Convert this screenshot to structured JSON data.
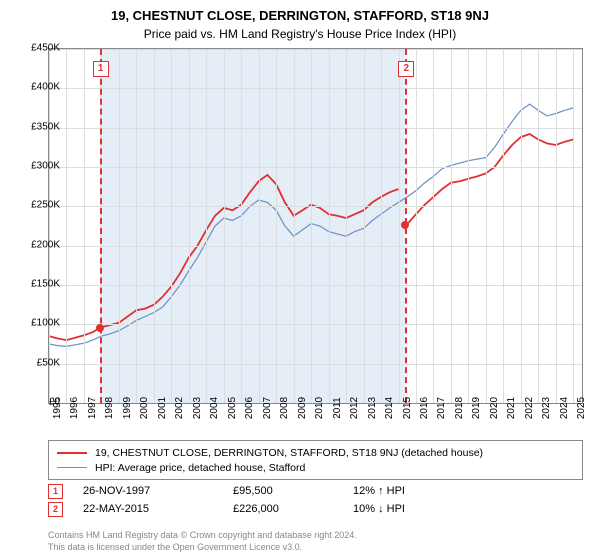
{
  "title_main": "19, CHESTNUT CLOSE, DERRINGTON, STAFFORD, ST18 9NJ",
  "title_sub": "Price paid vs. HM Land Registry's House Price Index (HPI)",
  "chart": {
    "type": "line",
    "ylim": [
      0,
      450000
    ],
    "ytick_step": 50000,
    "yticks": [
      "£0",
      "£50K",
      "£100K",
      "£150K",
      "£200K",
      "£250K",
      "£300K",
      "£350K",
      "£400K",
      "£450K"
    ],
    "xticks": [
      "1995",
      "1996",
      "1997",
      "1998",
      "1999",
      "2000",
      "2001",
      "2002",
      "2003",
      "2004",
      "2005",
      "2006",
      "2007",
      "2008",
      "2009",
      "2010",
      "2011",
      "2012",
      "2013",
      "2014",
      "2015",
      "2016",
      "2017",
      "2018",
      "2019",
      "2020",
      "2021",
      "2022",
      "2023",
      "2024",
      "2025"
    ],
    "xrange": [
      1995,
      2025.5
    ],
    "series": {
      "price": {
        "color": "#e03030",
        "width": 1.8,
        "data": [
          [
            1995,
            85000
          ],
          [
            1995.5,
            82000
          ],
          [
            1996,
            80000
          ],
          [
            1996.5,
            83000
          ],
          [
            1997,
            86000
          ],
          [
            1997.5,
            90000
          ],
          [
            1997.9,
            95500
          ],
          [
            1998.3,
            98000
          ],
          [
            1999,
            102000
          ],
          [
            1999.5,
            110000
          ],
          [
            2000,
            118000
          ],
          [
            2000.5,
            120000
          ],
          [
            2001,
            125000
          ],
          [
            2001.5,
            135000
          ],
          [
            2002,
            148000
          ],
          [
            2002.5,
            165000
          ],
          [
            2003,
            185000
          ],
          [
            2003.5,
            200000
          ],
          [
            2004,
            220000
          ],
          [
            2004.5,
            238000
          ],
          [
            2005,
            248000
          ],
          [
            2005.5,
            245000
          ],
          [
            2006,
            252000
          ],
          [
            2006.5,
            268000
          ],
          [
            2007,
            282000
          ],
          [
            2007.5,
            290000
          ],
          [
            2008,
            278000
          ],
          [
            2008.5,
            255000
          ],
          [
            2009,
            238000
          ],
          [
            2009.5,
            245000
          ],
          [
            2010,
            252000
          ],
          [
            2010.5,
            248000
          ],
          [
            2011,
            240000
          ],
          [
            2011.5,
            238000
          ],
          [
            2012,
            235000
          ],
          [
            2012.5,
            240000
          ],
          [
            2013,
            245000
          ],
          [
            2013.5,
            255000
          ],
          [
            2014,
            262000
          ],
          [
            2014.5,
            268000
          ],
          [
            2015,
            272000
          ],
          [
            2015.39,
            226000
          ],
          [
            2015.6,
            230000
          ],
          [
            2016,
            240000
          ],
          [
            2016.5,
            252000
          ],
          [
            2017,
            262000
          ],
          [
            2017.5,
            272000
          ],
          [
            2018,
            280000
          ],
          [
            2018.5,
            282000
          ],
          [
            2019,
            285000
          ],
          [
            2019.5,
            288000
          ],
          [
            2020,
            292000
          ],
          [
            2020.5,
            300000
          ],
          [
            2021,
            315000
          ],
          [
            2021.5,
            328000
          ],
          [
            2022,
            338000
          ],
          [
            2022.5,
            342000
          ],
          [
            2023,
            335000
          ],
          [
            2023.5,
            330000
          ],
          [
            2024,
            328000
          ],
          [
            2024.5,
            332000
          ],
          [
            2025,
            335000
          ]
        ]
      },
      "hpi": {
        "color": "#6a8fc5",
        "width": 1.2,
        "data": [
          [
            1995,
            75000
          ],
          [
            1995.5,
            73000
          ],
          [
            1996,
            72000
          ],
          [
            1996.5,
            74000
          ],
          [
            1997,
            76000
          ],
          [
            1997.5,
            80000
          ],
          [
            1998,
            85000
          ],
          [
            1998.5,
            88000
          ],
          [
            1999,
            92000
          ],
          [
            1999.5,
            98000
          ],
          [
            2000,
            105000
          ],
          [
            2000.5,
            110000
          ],
          [
            2001,
            115000
          ],
          [
            2001.5,
            122000
          ],
          [
            2002,
            135000
          ],
          [
            2002.5,
            150000
          ],
          [
            2003,
            168000
          ],
          [
            2003.5,
            185000
          ],
          [
            2004,
            205000
          ],
          [
            2004.5,
            225000
          ],
          [
            2005,
            235000
          ],
          [
            2005.5,
            232000
          ],
          [
            2006,
            238000
          ],
          [
            2006.5,
            250000
          ],
          [
            2007,
            258000
          ],
          [
            2007.5,
            255000
          ],
          [
            2008,
            245000
          ],
          [
            2008.5,
            225000
          ],
          [
            2009,
            212000
          ],
          [
            2009.5,
            220000
          ],
          [
            2010,
            228000
          ],
          [
            2010.5,
            225000
          ],
          [
            2011,
            218000
          ],
          [
            2011.5,
            215000
          ],
          [
            2012,
            212000
          ],
          [
            2012.5,
            218000
          ],
          [
            2013,
            222000
          ],
          [
            2013.5,
            232000
          ],
          [
            2014,
            240000
          ],
          [
            2014.5,
            248000
          ],
          [
            2015,
            255000
          ],
          [
            2015.5,
            262000
          ],
          [
            2016,
            270000
          ],
          [
            2016.5,
            280000
          ],
          [
            2017,
            288000
          ],
          [
            2017.5,
            298000
          ],
          [
            2018,
            302000
          ],
          [
            2018.5,
            305000
          ],
          [
            2019,
            308000
          ],
          [
            2019.5,
            310000
          ],
          [
            2020,
            312000
          ],
          [
            2020.5,
            325000
          ],
          [
            2021,
            342000
          ],
          [
            2021.5,
            358000
          ],
          [
            2022,
            372000
          ],
          [
            2022.5,
            380000
          ],
          [
            2023,
            372000
          ],
          [
            2023.5,
            365000
          ],
          [
            2024,
            368000
          ],
          [
            2024.5,
            372000
          ],
          [
            2025,
            375000
          ]
        ]
      }
    },
    "shaded_spans": [
      {
        "from": 1997.9,
        "to": 2015.39,
        "color": "#e5edf7"
      }
    ],
    "sale_markers": [
      {
        "n": "1",
        "year": 1997.9,
        "price": 95500
      },
      {
        "n": "2",
        "year": 2015.39,
        "price": 226000
      }
    ],
    "grid_color": "#dddddd",
    "border_color": "#888888",
    "background_color": "#ffffff"
  },
  "legend": {
    "rows": [
      {
        "color": "#e03030",
        "width": 2,
        "label": "19, CHESTNUT CLOSE, DERRINGTON, STAFFORD, ST18 9NJ (detached house)"
      },
      {
        "color": "#6a8fc5",
        "width": 1.2,
        "label": "HPI: Average price, detached house, Stafford"
      }
    ]
  },
  "sales_table": {
    "rows": [
      {
        "n": "1",
        "date": "26-NOV-1997",
        "price": "£95,500",
        "delta": "12% ↑ HPI"
      },
      {
        "n": "2",
        "date": "22-MAY-2015",
        "price": "£226,000",
        "delta": "10% ↓ HPI"
      }
    ]
  },
  "footer": {
    "line1": "Contains HM Land Registry data © Crown copyright and database right 2024.",
    "line2": "This data is licensed under the Open Government Licence v3.0."
  }
}
